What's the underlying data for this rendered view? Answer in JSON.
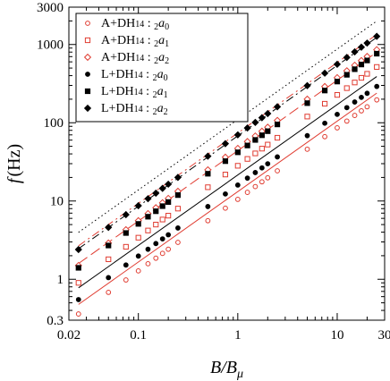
{
  "chart_data": {
    "type": "scatter",
    "x_scale": "log",
    "y_scale": "log",
    "xlim": [
      0.02,
      30
    ],
    "ylim": [
      0.3,
      3000
    ],
    "xlabel": "B/B_μ",
    "ylabel": "f (Hz)",
    "x_ticks": [
      {
        "value": 0.02,
        "label": "0.02"
      },
      {
        "value": 0.1,
        "label": "0.1"
      },
      {
        "value": 1,
        "label": "1"
      },
      {
        "value": 10,
        "label": "10"
      },
      {
        "value": 30,
        "label": "30"
      }
    ],
    "y_ticks": [
      {
        "value": 0.3,
        "label": "0.3"
      },
      {
        "value": 1,
        "label": "1"
      },
      {
        "value": 10,
        "label": "10"
      },
      {
        "value": 100,
        "label": "100"
      },
      {
        "value": 1000,
        "label": "1000"
      },
      {
        "value": 3000,
        "label": "3000"
      }
    ],
    "legend_position": "top-left",
    "grid": false,
    "x": [
      0.025,
      0.05,
      0.075,
      0.1,
      0.125,
      0.15,
      0.175,
      0.2,
      0.25,
      0.5,
      0.75,
      1,
      1.25,
      1.5,
      1.75,
      2,
      2.5,
      5,
      7.5,
      10,
      12.5,
      15,
      17.5,
      20,
      25
    ],
    "series": [
      {
        "name_main": "A+DH",
        "name_sub": "14",
        "name_sep": " : ",
        "name_mode": "2",
        "name_coef": "a",
        "name_coef_sub": "0",
        "marker": "circle-open",
        "color": "#e03c31",
        "line": "solid",
        "fit": {
          "a": 13.2,
          "b": 0.9
        },
        "values": [
          0.36,
          0.68,
          0.98,
          1.28,
          1.58,
          1.86,
          2.14,
          2.42,
          2.96,
          5.6,
          8.1,
          10.5,
          12.9,
          15.3,
          17.6,
          19.8,
          24.3,
          45.9,
          66.4,
          86.1,
          105,
          124,
          142,
          160,
          196
        ]
      },
      {
        "name_main": "A+DH",
        "name_sub": "14",
        "name_sep": " : ",
        "name_mode": "2",
        "name_coef": "a",
        "name_coef_sub": "1",
        "marker": "square-open",
        "color": "#e03c31",
        "line": "dashed",
        "fit": {
          "a": 44,
          "b": 0.9
        },
        "values": [
          0.9,
          1.8,
          2.6,
          3.4,
          4.2,
          5.0,
          5.8,
          6.5,
          8.0,
          15.0,
          21.8,
          28.2,
          34.5,
          40.6,
          46.7,
          52.6,
          64.3,
          120,
          175,
          227,
          277,
          327,
          375,
          422,
          516
        ]
      },
      {
        "name_main": "A+DH",
        "name_sub": "14",
        "name_sep": " : ",
        "name_mode": "2",
        "name_coef": "a",
        "name_coef_sub": "2",
        "marker": "diamond-open",
        "color": "#e03c31",
        "line": "dashdot",
        "fit": {
          "a": 74,
          "b": 0.9
        },
        "values": [
          1.5,
          2.9,
          4.3,
          5.6,
          6.9,
          8.2,
          9.5,
          10.8,
          13.3,
          25.0,
          36.3,
          47.0,
          57.5,
          67.7,
          77.8,
          87.7,
          107,
          200,
          290,
          377,
          461,
          543,
          623,
          703,
          858
        ]
      },
      {
        "name_main": "L+DH",
        "name_sub": "14",
        "name_sep": " : ",
        "name_mode": "2",
        "name_coef": "a",
        "name_coef_sub": "0",
        "marker": "circle-filled",
        "color": "#000000",
        "line": "solid",
        "fit": {
          "a": 21.5,
          "b": 0.9
        },
        "values": [
          0.55,
          1.05,
          1.52,
          1.98,
          2.42,
          2.86,
          3.28,
          3.7,
          4.52,
          8.5,
          12.3,
          16.0,
          19.6,
          23.1,
          26.5,
          29.9,
          36.6,
          68.4,
          98.7,
          128,
          156,
          184,
          211,
          238,
          291
        ]
      },
      {
        "name_main": "L+DH",
        "name_sub": "14",
        "name_sep": " : ",
        "name_mode": "2",
        "name_coef": "a",
        "name_coef_sub": "1",
        "marker": "square-filled",
        "color": "#000000",
        "line": "dashdot",
        "fit": {
          "a": 68,
          "b": 0.9
        },
        "values": [
          1.4,
          2.7,
          3.9,
          5.1,
          6.3,
          7.4,
          8.6,
          9.7,
          11.9,
          22.3,
          32.3,
          41.9,
          51.2,
          60.3,
          69.2,
          78.0,
          95.2,
          178,
          258,
          336,
          410,
          483,
          555,
          625,
          763
        ]
      },
      {
        "name_main": "L+DH",
        "name_sub": "14",
        "name_sep": " : ",
        "name_mode": "2",
        "name_coef": "a",
        "name_coef_sub": "2",
        "marker": "diamond-filled",
        "color": "#000000",
        "line": "dotted",
        "fit": {
          "a": 110,
          "b": 0.9
        },
        "values": [
          2.4,
          4.6,
          6.7,
          8.7,
          10.7,
          12.6,
          14.5,
          16.4,
          20.0,
          37.4,
          54.0,
          70.0,
          85.7,
          101,
          116,
          131,
          160,
          298,
          430,
          558,
          683,
          805,
          924,
          1042,
          1272
        ]
      }
    ]
  }
}
